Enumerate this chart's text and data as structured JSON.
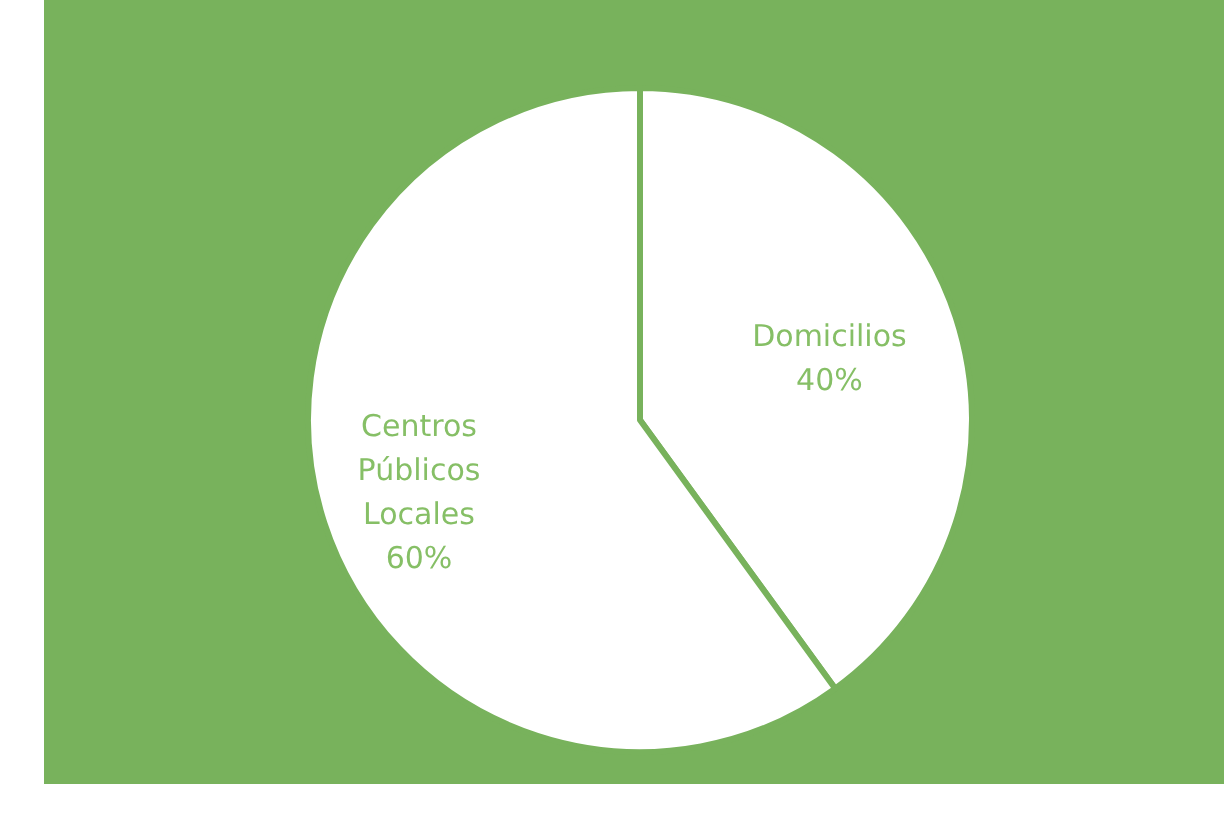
{
  "chart_data": {
    "type": "pie",
    "categories": [
      "Domicilios",
      "Centros Públicos Locales"
    ],
    "values": [
      40,
      60
    ],
    "colors": [
      "#ffffff",
      "#ffffff"
    ],
    "value_labels": [
      "40%",
      "60%"
    ]
  }
}
